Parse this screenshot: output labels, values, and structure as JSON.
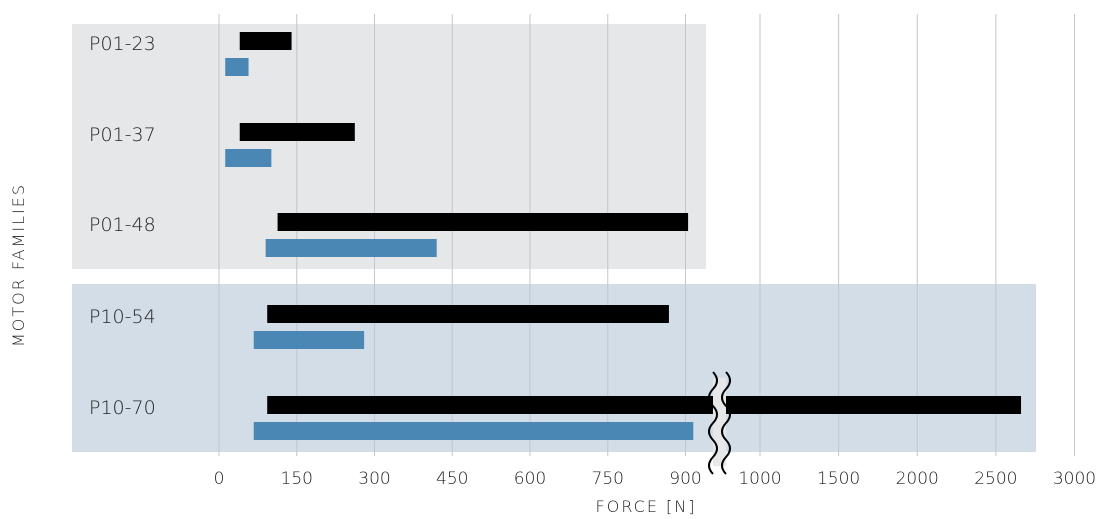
{
  "chart_data": {
    "type": "bar",
    "orientation": "horizontal",
    "title": "",
    "xlabel": "FORCE [N]",
    "ylabel": "MOTOR FAMILIES",
    "categories": [
      "P01-23",
      "P01-37",
      "P01-48",
      "P10-54",
      "P10-70"
    ],
    "groups": [
      {
        "categories": [
          "P01-23",
          "P01-37",
          "P01-48"
        ],
        "color": "#e6e7e9"
      },
      {
        "categories": [
          "P10-54",
          "P10-70"
        ],
        "color": "#d2dde8"
      }
    ],
    "series": [
      {
        "color": "#000000",
        "ranges": [
          [
            40,
            140
          ],
          [
            40,
            262
          ],
          [
            113,
            905
          ],
          [
            93,
            868
          ],
          [
            93,
            2660
          ]
        ]
      },
      {
        "color": "#4a87b5",
        "ranges": [
          [
            12,
            57
          ],
          [
            12,
            101
          ],
          [
            90,
            420
          ],
          [
            67,
            280
          ],
          [
            67,
            915
          ]
        ]
      }
    ],
    "axis": {
      "break_at": 930,
      "segments": [
        {
          "ticks": [
            0,
            150,
            300,
            450,
            600,
            750,
            900
          ]
        },
        {
          "ticks": [
            1000,
            1500,
            2000,
            2500,
            3000
          ]
        }
      ],
      "tick_labels": [
        "0",
        "150",
        "300",
        "450",
        "600",
        "750",
        "900",
        "1000",
        "1500",
        "2000",
        "2500",
        "3000"
      ]
    },
    "grid": true,
    "legend": "none"
  }
}
